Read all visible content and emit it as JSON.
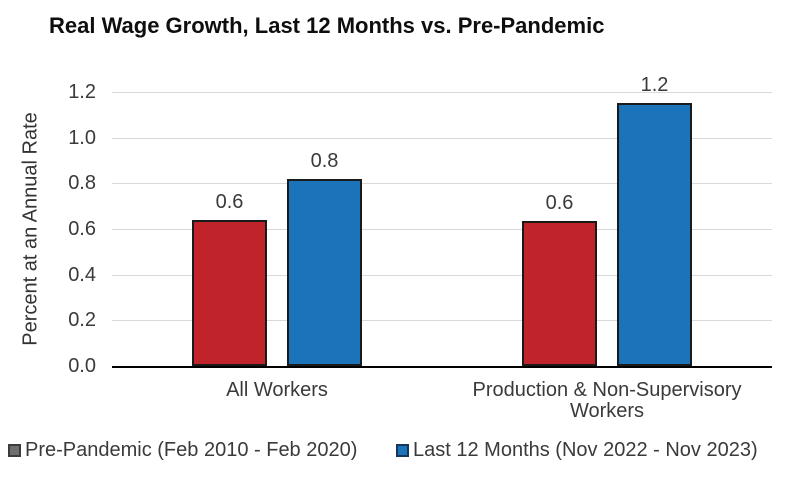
{
  "chart_data": {
    "type": "bar",
    "title": "Real Wage Growth, Last 12 Months vs. Pre-Pandemic",
    "xlabel": "",
    "ylabel": "Percent at an Annual Rate",
    "ylim": [
      0,
      1.2
    ],
    "ytick_step": 0.2,
    "yticks": [
      "0.0",
      "0.2",
      "0.4",
      "0.6",
      "0.8",
      "1.0",
      "1.2"
    ],
    "grid": true,
    "legend_position": "bottom",
    "categories": [
      "All Workers",
      "Production & Non-Supervisory\nWorkers"
    ],
    "series": [
      {
        "name": "Pre-Pandemic (Feb 2010 - Feb 2020)",
        "values": [
          0.64,
          0.635
        ],
        "labels": [
          "0.6",
          "0.6"
        ],
        "color": "#c0232a",
        "swatch_fill": "#6f6f6f",
        "swatch_border": "#3c3c3c"
      },
      {
        "name": "Last 12 Months (Nov 2022 - Nov 2023)",
        "values": [
          0.82,
          1.15
        ],
        "labels": [
          "0.8",
          "1.2"
        ],
        "color": "#1b74ba",
        "swatch_fill": "#1b74ba",
        "swatch_border": "#16365c"
      }
    ],
    "colors": {
      "bar_border": "#1a1a1a",
      "gridline": "#d9d9d9",
      "axis_line": "#000000",
      "text": "#3a3a3a",
      "title_text": "#0e0e0e"
    }
  }
}
